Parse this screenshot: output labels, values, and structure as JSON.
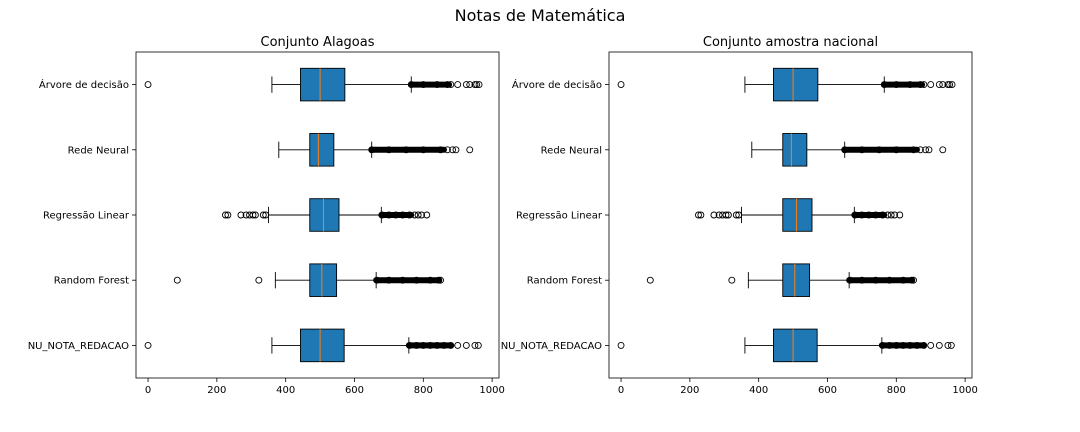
{
  "figure": {
    "suptitle": "Notas de Matemática"
  },
  "chart_data": [
    {
      "type": "boxplot",
      "orientation": "horizontal",
      "title": "Conjunto Alagoas",
      "xlabel": "",
      "ylabel": "",
      "xlim": [
        -35,
        1020
      ],
      "xticks": [
        0,
        200,
        400,
        600,
        800,
        1000
      ],
      "grid": false,
      "box_color": "#1f77b4",
      "median_color": "#ff7f0e",
      "categories": [
        "NU_NOTA_REDACAO",
        "Random Forest",
        "Regressão Linear",
        "Rede Neural",
        "Árvore de decisão"
      ],
      "boxes": [
        {
          "label": "NU_NOTA_REDACAO",
          "whisker_low": 360,
          "q1": 443,
          "median": 500,
          "q3": 570,
          "whisker_high": 758,
          "fliers": [
            0,
            760,
            780,
            800,
            820,
            840,
            860,
            880,
            900,
            925,
            950,
            960
          ],
          "dense_flier_range": [
            758,
            880
          ]
        },
        {
          "label": "Random Forest",
          "whisker_low": 370,
          "q1": 470,
          "median": 505,
          "q3": 548,
          "whisker_high": 663,
          "fliers": [
            85,
            322,
            665,
            700,
            740,
            780,
            820,
            845,
            850
          ],
          "dense_flier_range": [
            663,
            845
          ]
        },
        {
          "label": "Regressão Linear",
          "whisker_low": 350,
          "q1": 470,
          "median": 510,
          "q3": 555,
          "whisker_high": 678,
          "fliers": [
            225,
            232,
            270,
            285,
            295,
            305,
            312,
            335,
            342,
            680,
            700,
            720,
            740,
            760,
            775,
            785,
            795,
            810
          ],
          "dense_flier_range": [
            678,
            765
          ]
        },
        {
          "label": "Rede Neural",
          "whisker_low": 380,
          "q1": 470,
          "median": 495,
          "q3": 540,
          "whisker_high": 650,
          "fliers": [
            650,
            700,
            750,
            800,
            850,
            870,
            885,
            895,
            935
          ],
          "dense_flier_range": [
            650,
            860
          ]
        },
        {
          "label": "Árvore de decisão",
          "whisker_low": 360,
          "q1": 443,
          "median": 500,
          "q3": 572,
          "whisker_high": 765,
          "fliers": [
            0,
            765,
            800,
            840,
            870,
            880,
            900,
            925,
            935,
            950,
            955,
            962
          ],
          "dense_flier_range": [
            765,
            875
          ]
        }
      ]
    },
    {
      "type": "boxplot",
      "orientation": "horizontal",
      "title": "Conjunto amostra nacional",
      "xlabel": "",
      "ylabel": "",
      "xlim": [
        -35,
        1020
      ],
      "xticks": [
        0,
        200,
        400,
        600,
        800,
        1000
      ],
      "grid": false,
      "box_color": "#1f77b4",
      "median_color": "#ff7f0e",
      "categories": [
        "NU_NOTA_REDACAO",
        "Random Forest",
        "Regressão Linear",
        "Rede Neural",
        "Árvore de decisão"
      ],
      "boxes": [
        {
          "label": "NU_NOTA_REDACAO",
          "whisker_low": 360,
          "q1": 443,
          "median": 500,
          "q3": 570,
          "whisker_high": 758,
          "fliers": [
            0,
            760,
            780,
            800,
            820,
            840,
            860,
            880,
            900,
            925,
            950,
            960
          ],
          "dense_flier_range": [
            758,
            880
          ]
        },
        {
          "label": "Random Forest",
          "whisker_low": 370,
          "q1": 470,
          "median": 505,
          "q3": 548,
          "whisker_high": 663,
          "fliers": [
            85,
            322,
            665,
            700,
            740,
            780,
            820,
            845,
            850
          ],
          "dense_flier_range": [
            663,
            845
          ]
        },
        {
          "label": "Regressão Linear",
          "whisker_low": 350,
          "q1": 470,
          "median": 510,
          "q3": 555,
          "whisker_high": 678,
          "fliers": [
            225,
            232,
            270,
            285,
            295,
            305,
            312,
            335,
            342,
            680,
            700,
            720,
            740,
            760,
            775,
            785,
            795,
            810
          ],
          "dense_flier_range": [
            678,
            765
          ]
        },
        {
          "label": "Rede Neural",
          "whisker_low": 380,
          "q1": 470,
          "median": 495,
          "q3": 540,
          "whisker_high": 650,
          "fliers": [
            650,
            700,
            750,
            800,
            850,
            870,
            885,
            895,
            935
          ],
          "dense_flier_range": [
            650,
            860
          ]
        },
        {
          "label": "Árvore de decisão",
          "whisker_low": 360,
          "q1": 443,
          "median": 500,
          "q3": 572,
          "whisker_high": 765,
          "fliers": [
            0,
            765,
            800,
            840,
            870,
            880,
            900,
            925,
            935,
            950,
            955,
            962
          ],
          "dense_flier_range": [
            765,
            875
          ]
        }
      ]
    }
  ]
}
